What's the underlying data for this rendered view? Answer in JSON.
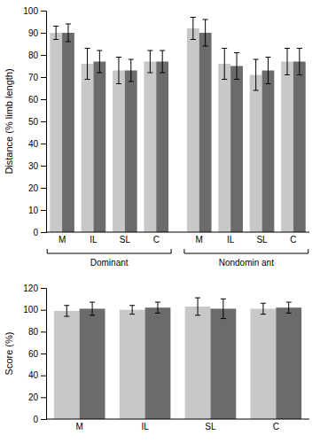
{
  "chart_data": [
    {
      "type": "bar",
      "ylabel": "Distance (% limb length)",
      "categories": [
        "M",
        "IL",
        "SL",
        "C",
        "M",
        "IL",
        "SL",
        "C"
      ],
      "groups": [
        "Dominant",
        "Nondomin ant"
      ],
      "series": [
        {
          "color": "#c8c8c8",
          "values": [
            90,
            76,
            73,
            77,
            92,
            76,
            71,
            77
          ],
          "errors": [
            3,
            7,
            6,
            5,
            5,
            7,
            7,
            6
          ]
        },
        {
          "color": "#6b6b6b",
          "values": [
            90,
            77,
            73,
            77,
            90,
            75,
            73,
            77
          ],
          "errors": [
            4,
            5,
            5,
            5,
            6,
            6,
            6,
            6
          ]
        }
      ],
      "ylim": [
        0,
        100
      ],
      "yticks": [
        0,
        10,
        20,
        30,
        40,
        50,
        60,
        70,
        80,
        90,
        100
      ]
    },
    {
      "type": "bar",
      "ylabel": "Score (%)",
      "categories": [
        "M",
        "IL",
        "SL",
        "C"
      ],
      "series": [
        {
          "color": "#c8c8c8",
          "values": [
            99,
            100,
            103,
            101
          ],
          "errors": [
            5,
            4,
            8,
            5
          ]
        },
        {
          "color": "#6b6b6b",
          "values": [
            101,
            102,
            101,
            102
          ],
          "errors": [
            6,
            5,
            9,
            5
          ]
        }
      ],
      "ylim": [
        0,
        120
      ],
      "yticks": [
        0,
        20,
        40,
        60,
        80,
        100,
        120
      ]
    }
  ]
}
